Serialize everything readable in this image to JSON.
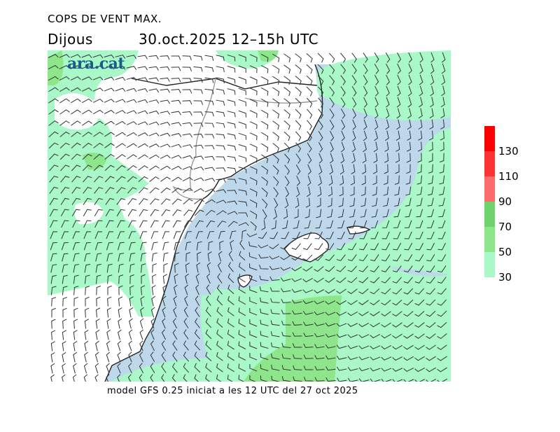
{
  "header": {
    "title": "COPS DE VENT MAX.",
    "day": "Dijous",
    "datetime": "30.oct.2025 12–15h UTC"
  },
  "logo": "ara.cat",
  "footer": "model GFS 0.25 iniciat a les 12 UTC del 27 oct 2025",
  "legend": {
    "unit_levels": [
      {
        "label": "130",
        "color": "#ff0000"
      },
      {
        "label": "110",
        "color": "#ff3333"
      },
      {
        "label": "90",
        "color": "#ff6b6b"
      },
      {
        "label": "70",
        "color": "#6dd46d"
      },
      {
        "label": "50",
        "color": "#8ee68a"
      },
      {
        "label": "30",
        "color": "#a8f8c8"
      }
    ]
  },
  "colors": {
    "sea_calm": "#bcd8ea",
    "land": "#ffffff",
    "coast": "#222222",
    "border": "#999999"
  }
}
